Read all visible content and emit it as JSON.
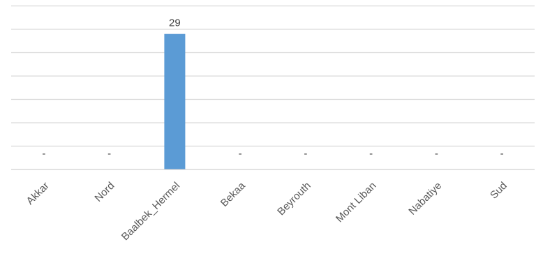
{
  "chart_data": {
    "type": "bar",
    "categories": [
      "Akkar",
      "Nord",
      "Baalbek_Hermel",
      "Bekaa",
      "Beyrouth",
      "Mont Liban",
      "Nabatiye",
      "Sud"
    ],
    "values": [
      0,
      0,
      29,
      0,
      0,
      0,
      0,
      0
    ],
    "data_labels": [
      "-",
      "-",
      "29",
      "-",
      "-",
      "-",
      "-",
      "-"
    ],
    "title": "",
    "xlabel": "",
    "ylabel": "",
    "ylim": [
      0,
      35
    ],
    "gridline_step": 5,
    "grid": true,
    "y_tick_labels_shown": false,
    "legend": "none",
    "bar_color": "#5b9bd5"
  }
}
